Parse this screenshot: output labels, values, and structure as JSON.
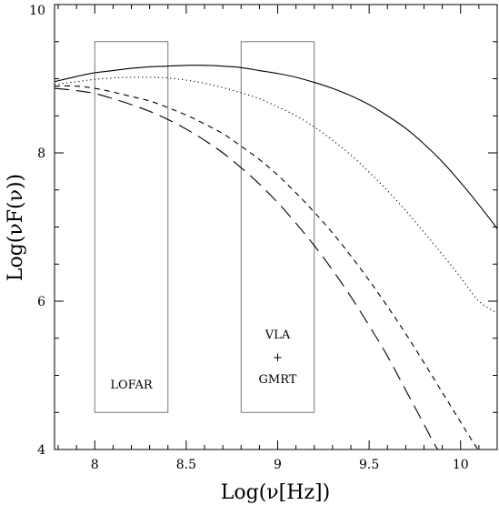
{
  "chart_data": {
    "type": "line",
    "xlabel": "Log(ν[Hz])",
    "ylabel": "Log(νF(ν))",
    "xlim": [
      7.78,
      10.2
    ],
    "ylim": [
      4,
      10
    ],
    "xticks": [
      {
        "value": 8,
        "label": "8"
      },
      {
        "value": 8.5,
        "label": "8.5"
      },
      {
        "value": 9,
        "label": "9"
      },
      {
        "value": 9.5,
        "label": "9.5"
      },
      {
        "value": 10,
        "label": "10"
      }
    ],
    "yticks": [
      {
        "value": 4,
        "label": "4"
      },
      {
        "value": 6,
        "label": "6"
      },
      {
        "value": 8,
        "label": "8"
      },
      {
        "value": 10,
        "label": "10"
      }
    ],
    "x_minor_step": 0.1,
    "y_minor_step": 0.5,
    "grid": false,
    "series": [
      {
        "style": "solid",
        "x": [
          7.78,
          7.9,
          8.0,
          8.1,
          8.2,
          8.3,
          8.4,
          8.5,
          8.6,
          8.7,
          8.8,
          8.9,
          9.0,
          9.1,
          9.2,
          9.3,
          9.4,
          9.5,
          9.6,
          9.7,
          9.8,
          9.9,
          10.0,
          10.1,
          10.2
        ],
        "y": [
          8.96,
          9.03,
          9.08,
          9.11,
          9.14,
          9.16,
          9.17,
          9.18,
          9.18,
          9.17,
          9.15,
          9.11,
          9.07,
          9.02,
          8.95,
          8.87,
          8.77,
          8.65,
          8.5,
          8.33,
          8.12,
          7.88,
          7.6,
          7.3,
          6.98
        ]
      },
      {
        "style": "dotted",
        "x": [
          7.78,
          7.9,
          8.0,
          8.1,
          8.2,
          8.3,
          8.4,
          8.5,
          8.6,
          8.7,
          8.8,
          8.9,
          9.0,
          9.1,
          9.2,
          9.3,
          9.4,
          9.5,
          9.6,
          9.7,
          9.8,
          9.9,
          10.0,
          10.1,
          10.2
        ],
        "y": [
          8.92,
          8.96,
          8.99,
          9.01,
          9.02,
          9.02,
          9.01,
          8.98,
          8.94,
          8.88,
          8.81,
          8.73,
          8.62,
          8.5,
          8.35,
          8.17,
          7.97,
          7.74,
          7.49,
          7.22,
          6.93,
          6.63,
          6.32,
          6.0,
          5.84
        ]
      },
      {
        "style": "short-dashed",
        "x": [
          7.78,
          7.9,
          8.0,
          8.1,
          8.2,
          8.3,
          8.4,
          8.5,
          8.6,
          8.7,
          8.8,
          8.9,
          9.0,
          9.1,
          9.2,
          9.3,
          9.4,
          9.5,
          9.6,
          9.7,
          9.8,
          9.9,
          10.0,
          10.05,
          10.1
        ],
        "y": [
          8.9,
          8.9,
          8.87,
          8.82,
          8.76,
          8.7,
          8.61,
          8.51,
          8.39,
          8.26,
          8.09,
          7.91,
          7.7,
          7.46,
          7.2,
          6.92,
          6.61,
          6.28,
          5.93,
          5.56,
          5.17,
          4.77,
          4.37,
          4.17,
          3.98
        ]
      },
      {
        "style": "long-dashed",
        "x": [
          7.78,
          7.9,
          8.0,
          8.1,
          8.2,
          8.3,
          8.4,
          8.5,
          8.6,
          8.7,
          8.8,
          8.9,
          9.0,
          9.1,
          9.2,
          9.3,
          9.4,
          9.5,
          9.6,
          9.7,
          9.8,
          9.85,
          9.88
        ],
        "y": [
          8.87,
          8.84,
          8.8,
          8.73,
          8.65,
          8.56,
          8.45,
          8.32,
          8.17,
          8.0,
          7.8,
          7.58,
          7.33,
          7.05,
          6.75,
          6.42,
          6.06,
          5.67,
          5.26,
          4.8,
          4.34,
          4.1,
          3.98
        ]
      }
    ],
    "boxes": [
      {
        "label": "LOFAR",
        "x0": 8.0,
        "x1": 8.4,
        "y0": 4.5,
        "y1": 9.5
      },
      {
        "label_lines": [
          "VLA",
          "+",
          "GMRT"
        ],
        "x0": 8.8,
        "x1": 9.2,
        "y0": 4.5,
        "y1": 9.5
      }
    ]
  }
}
